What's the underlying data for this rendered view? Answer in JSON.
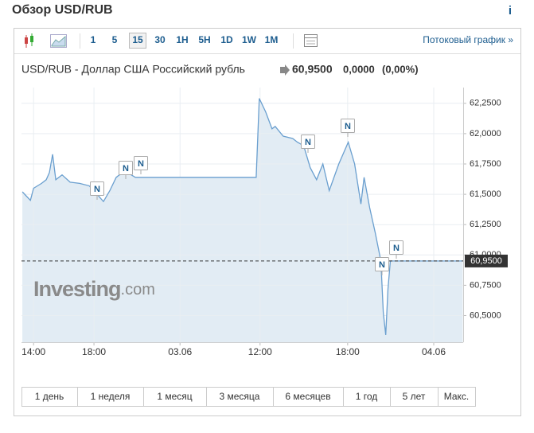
{
  "header": {
    "title": "Обзор USD/RUB",
    "info_icon": "i"
  },
  "toolbar": {
    "intervals": [
      "1",
      "5",
      "15",
      "30",
      "1H",
      "5H",
      "1D",
      "1W",
      "1M"
    ],
    "selected_interval": "15",
    "streaming_link": "Потоковый график »"
  },
  "quote": {
    "pair": "USD/RUB - Доллар США Российский рубль",
    "price": "60,9500",
    "change": "0,0000",
    "change_percent": "(0,00%)"
  },
  "chart_data": {
    "type": "line",
    "x": [
      13.26,
      13.79,
      14,
      14.53,
      14.84,
      15.05,
      15.26,
      15.47,
      15.89,
      16.42,
      17.05,
      17.68,
      18,
      18.42,
      18.63,
      19.05,
      19.47,
      19.68,
      20.21,
      20.74,
      28.74,
      28.95,
      29.37,
      29.79,
      30,
      30.53,
      31.16,
      31.47,
      31.89,
      32.32,
      32.74,
      33.16,
      33.58,
      34.21,
      34.84,
      35.26,
      35.68,
      35.89,
      36.26,
      36.63,
      37,
      37.16,
      37.32,
      37.47,
      37.63,
      42.42
    ],
    "values": [
      61.52,
      61.45,
      61.55,
      61.59,
      61.62,
      61.68,
      61.83,
      61.62,
      61.66,
      61.6,
      61.59,
      61.57,
      61.53,
      61.47,
      61.44,
      61.53,
      61.64,
      61.66,
      61.68,
      61.64,
      61.64,
      62.29,
      62.18,
      62.04,
      62.06,
      61.98,
      61.96,
      61.93,
      61.9,
      61.72,
      61.62,
      61.75,
      61.53,
      61.75,
      61.93,
      61.75,
      61.42,
      61.64,
      61.39,
      61.18,
      60.95,
      60.53,
      60.34,
      60.72,
      60.95,
      60.95
    ],
    "color": "#6a9fcf",
    "fill_color": "#e2ecf4",
    "xlim": [
      13.2,
      42.45
    ],
    "xticks": [
      {
        "value": 14,
        "label": "14:00"
      },
      {
        "value": 18,
        "label": "18:00"
      },
      {
        "value": 23.7,
        "label": "03.06"
      },
      {
        "value": 29,
        "label": "12:00"
      },
      {
        "value": 34.8,
        "label": "18:00"
      },
      {
        "value": 40.5,
        "label": "04.06"
      }
    ],
    "ylim": [
      60.28,
      62.38
    ],
    "yticks": [
      {
        "value": 60.5,
        "label": "60,5000"
      },
      {
        "value": 60.75,
        "label": "60,7500"
      },
      {
        "value": 61,
        "label": "61,0000"
      },
      {
        "value": 61.25,
        "label": "61,2500"
      },
      {
        "value": 61.5,
        "label": "61,5000"
      },
      {
        "value": 61.75,
        "label": "61,7500"
      },
      {
        "value": 62,
        "label": "62,0000"
      },
      {
        "value": 62.25,
        "label": "62,2500"
      }
    ],
    "grid": true,
    "current": {
      "value": 60.95,
      "label": "60,9500"
    },
    "news_markers": [
      "N",
      "N",
      "N",
      "N",
      "N",
      "N",
      "N"
    ],
    "watermark": {
      "brand": "Investing",
      "suffix": ".com"
    }
  },
  "ranges": [
    "1 день",
    "1 неделя",
    "1 месяц",
    "3 месяца",
    "6 месяцев",
    "1 год",
    "5 лет",
    "Макс."
  ]
}
